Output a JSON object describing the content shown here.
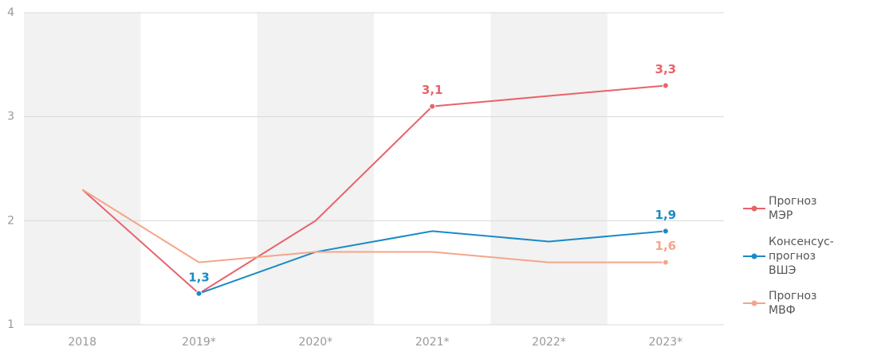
{
  "chart_data": {
    "type": "line",
    "categories": [
      "2018",
      "2019*",
      "2020*",
      "2021*",
      "2022*",
      "2023*"
    ],
    "series": [
      {
        "name": "Прогноз МЭР",
        "color": "#e8636a",
        "values": [
          2.3,
          1.3,
          2.0,
          3.1,
          3.2,
          3.3
        ],
        "value_labels": [
          null,
          null,
          null,
          "3,1",
          null,
          "3,3"
        ]
      },
      {
        "name": "Консенсус-прогноз ВШЭ",
        "color": "#1a8ac6",
        "values": [
          null,
          1.3,
          1.7,
          1.9,
          1.8,
          1.9
        ],
        "value_labels": [
          null,
          "1,3",
          null,
          null,
          null,
          "1,9"
        ]
      },
      {
        "name": "Прогноз МВФ",
        "color": "#f4a58a",
        "values": [
          2.3,
          1.6,
          1.7,
          1.7,
          1.6,
          1.6
        ],
        "value_labels": [
          null,
          null,
          null,
          null,
          null,
          "1,6"
        ]
      }
    ],
    "ylim": [
      1,
      4
    ],
    "yticks": [
      1,
      2,
      3,
      4
    ],
    "grid": true,
    "legend": "right"
  }
}
